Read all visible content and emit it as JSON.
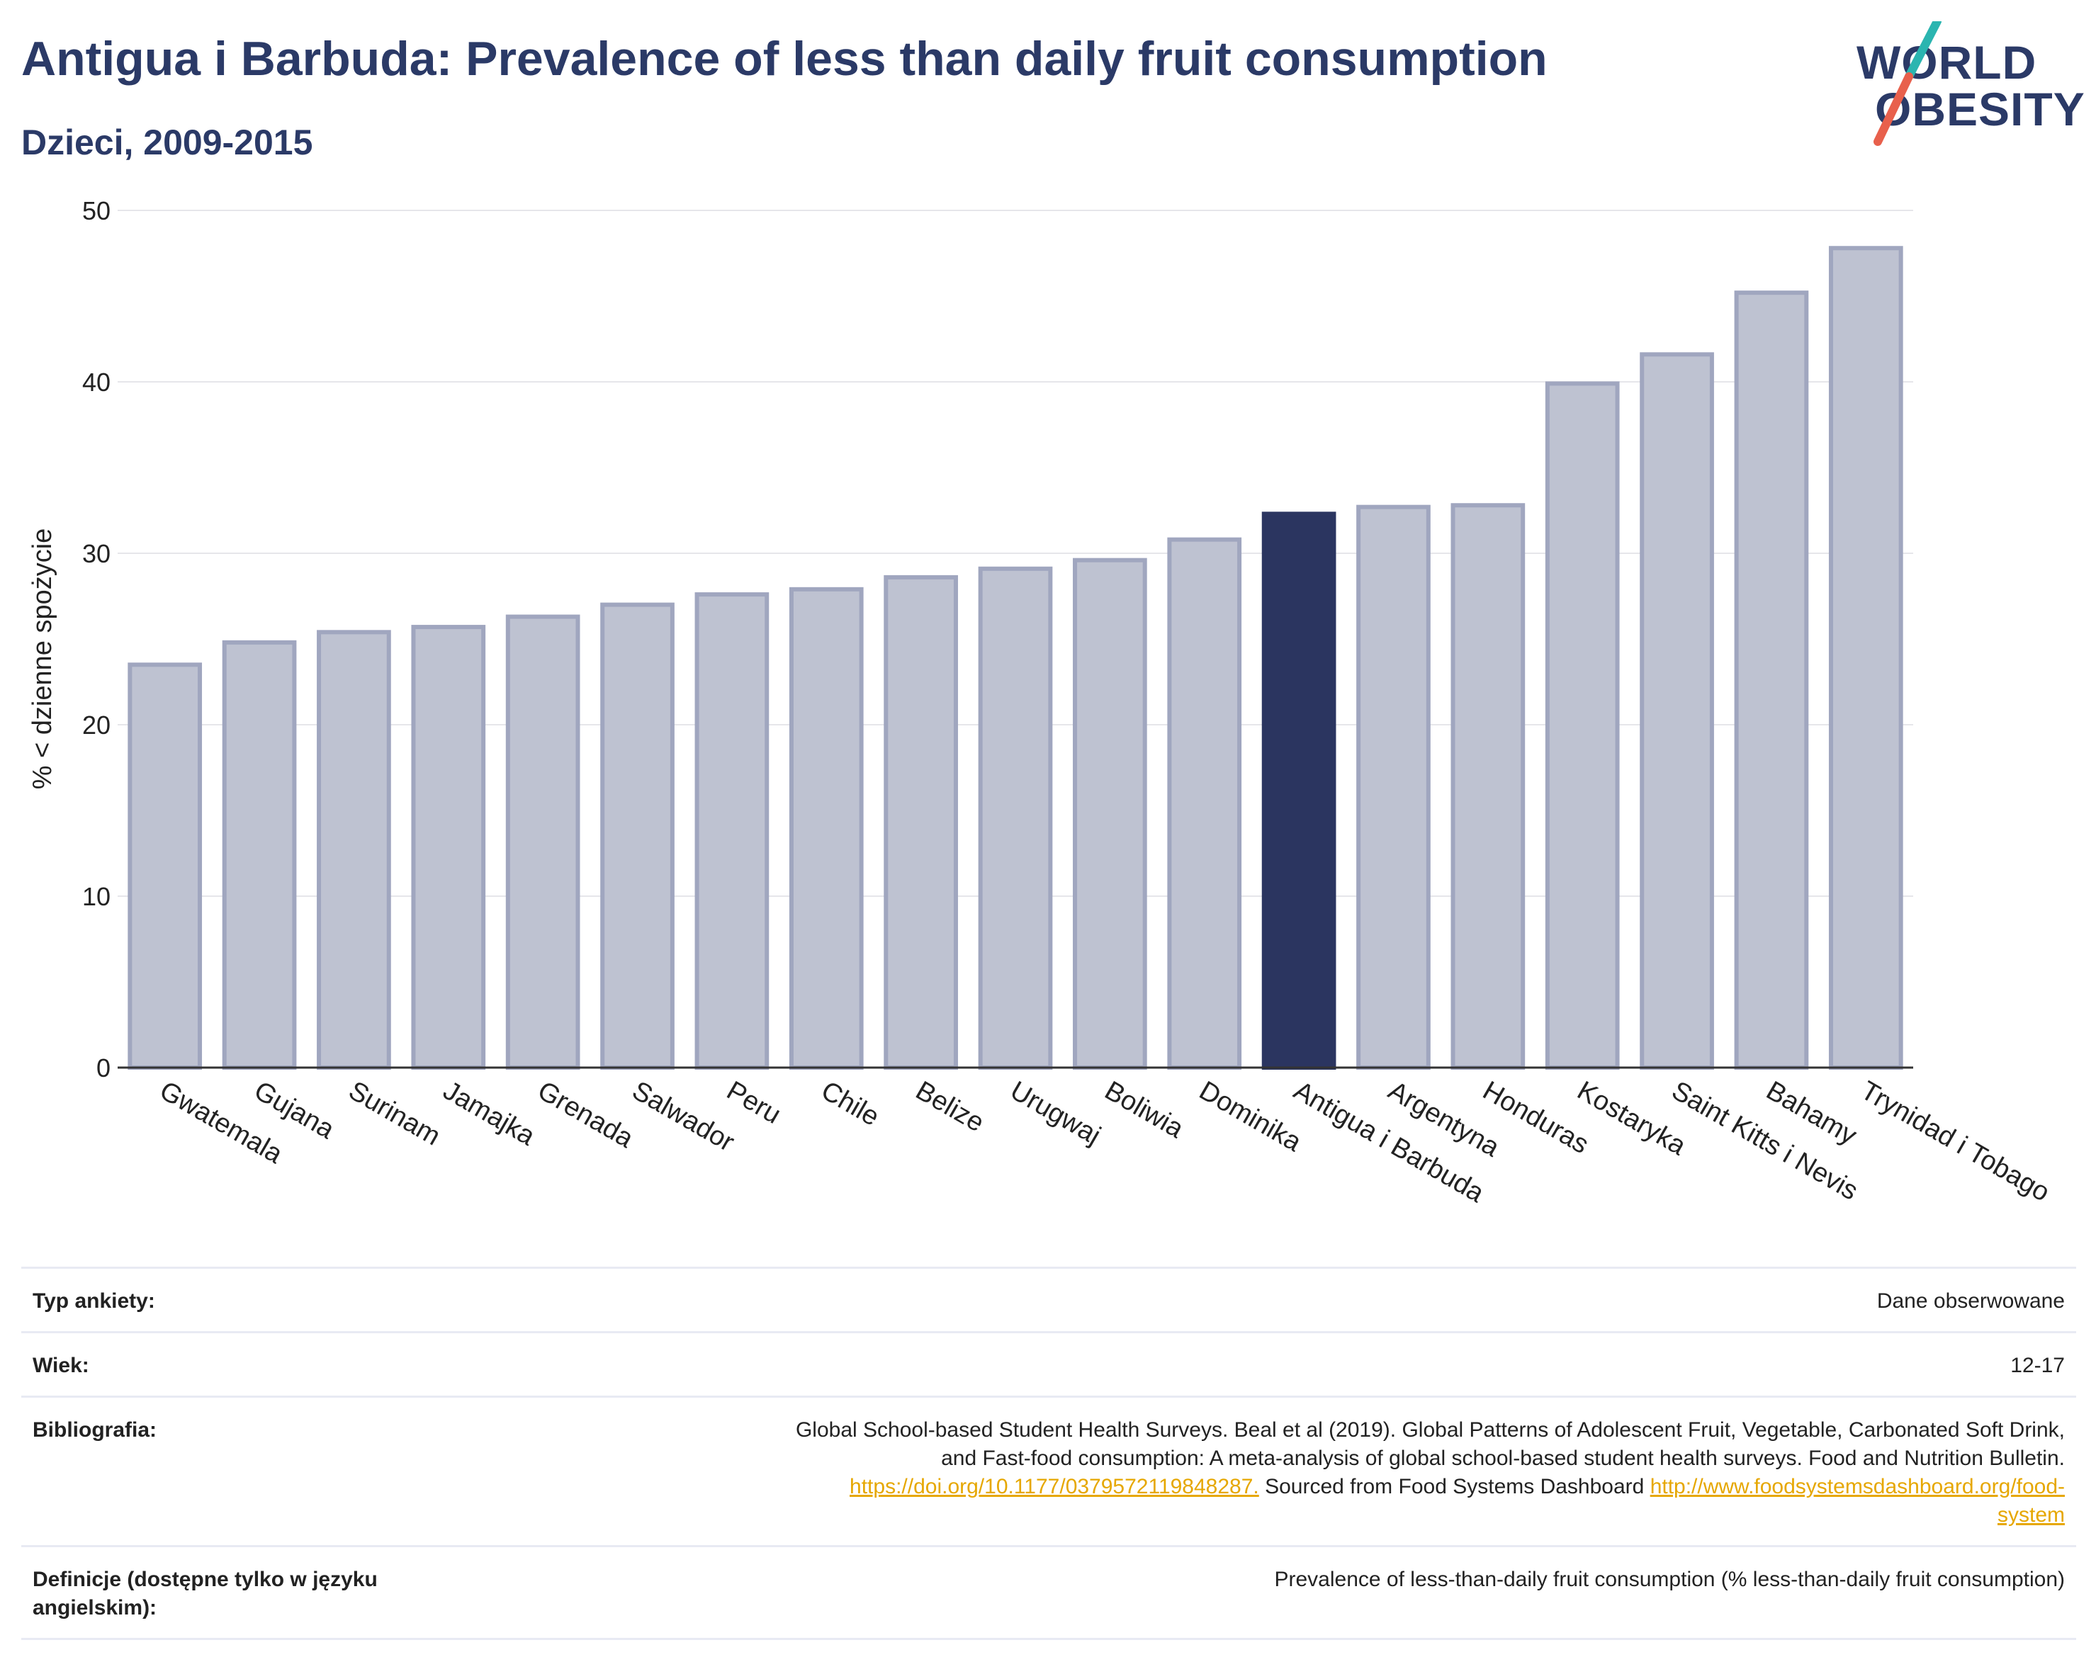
{
  "header": {
    "title": "Antigua i Barbuda: Prevalence of less than daily fruit consumption",
    "subtitle": "Dzieci, 2009-2015"
  },
  "logo": {
    "line1": "WORLD",
    "line2": "OBESITY",
    "colors": {
      "text": "#2b3a67",
      "slash_teal": "#2bb5b0",
      "slash_red": "#e8604c"
    }
  },
  "chart_data": {
    "type": "bar",
    "title": "",
    "xlabel": "",
    "ylabel": "% < dzienne spożycie",
    "ylim": [
      0,
      50
    ],
    "yticks": [
      0,
      10,
      20,
      30,
      40,
      50
    ],
    "grid": true,
    "highlight": "Antigua i Barbuda",
    "colors": {
      "bar": "#bec2d1",
      "bar_border": "#a0a6bf",
      "highlight": "#2b3560"
    },
    "categories": [
      "Gwatemala",
      "Gujana",
      "Surinam",
      "Jamajka",
      "Grenada",
      "Salwador",
      "Peru",
      "Chile",
      "Belize",
      "Urugwaj",
      "Boliwia",
      "Dominika",
      "Antigua i Barbuda",
      "Argentyna",
      "Honduras",
      "Kostaryka",
      "Saint Kitts i Nevis",
      "Bahamy",
      "Trynidad i Tobago"
    ],
    "values": [
      23.5,
      24.8,
      25.4,
      25.7,
      26.3,
      27.0,
      27.6,
      27.9,
      28.6,
      29.1,
      29.6,
      30.8,
      32.3,
      32.7,
      32.8,
      39.9,
      41.6,
      45.2,
      47.8
    ]
  },
  "metadata": [
    {
      "label": "Typ ankiety:",
      "value": "Dane obserwowane"
    },
    {
      "label": "Wiek:",
      "value": "12-17"
    },
    {
      "label": "Bibliografia:",
      "value_line1": "Global School-based Student Health Surveys. Beal et al (2019). Global Patterns of Adolescent Fruit, Vegetable, Carbonated Soft Drink,",
      "value_line2": "and Fast-food consumption: A meta-analysis of global school-based student health surveys. Food and Nutrition Bulletin.",
      "doi_link": "https://doi.org/10.1177/0379572119848287.",
      "sourced_text": " Sourced from Food Systems Dashboard ",
      "dashboard_link_part1": "http://www.foodsystemsdashboard.org/food-",
      "dashboard_link_part2": "system"
    },
    {
      "label": "Definicje (dostępne tylko w języku angielskim):",
      "value": "Prevalence of less-than-daily fruit consumption (% less-than-daily fruit consumption)"
    }
  ]
}
